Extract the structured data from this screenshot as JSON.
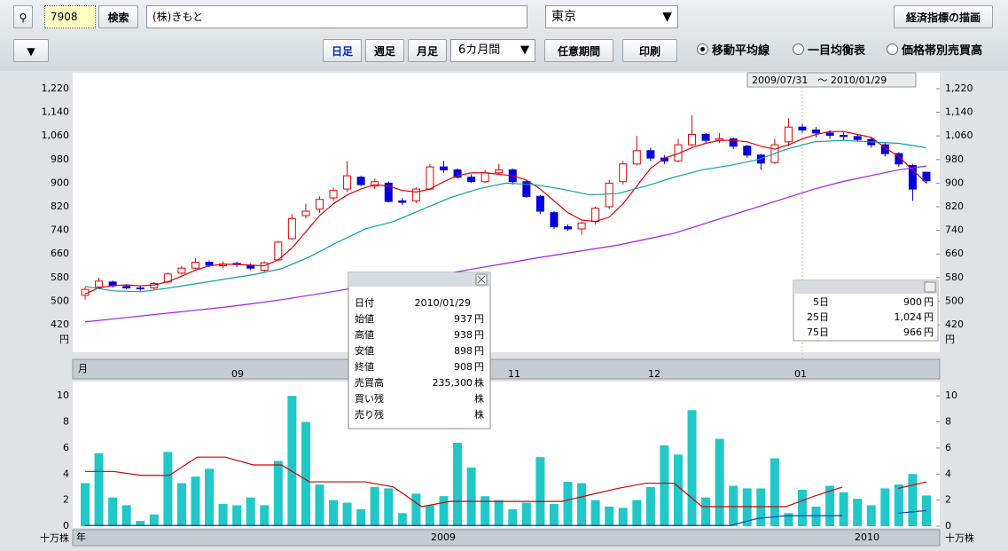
{
  "toolbar": {
    "code": "7908",
    "search": "検索",
    "name": "(株)きもと",
    "market": "東京",
    "draw_indicator": "経済指標の描画",
    "periods": [
      "日足",
      "週足",
      "月足"
    ],
    "range": "6カ月間",
    "custom": "任意期間",
    "print": "印刷",
    "modes": [
      "移動平均線",
      "一目均衡表",
      "価格帯別売買高"
    ]
  },
  "chart_data": [
    {
      "type": "candlestick",
      "date_range": "2009/07/31　～ 2010/01/29",
      "unit": "円",
      "month_label": "月",
      "months": [
        "09",
        "11",
        "12",
        "01"
      ],
      "ylim": [
        333,
        1268
      ],
      "yticks": [
        420,
        500,
        580,
        660,
        740,
        820,
        900,
        980,
        {
          "value": 1060,
          "label": "1,060"
        },
        {
          "value": 1140,
          "label": "1,140"
        },
        {
          "value": 1220,
          "label": "1,220"
        }
      ],
      "grid": false,
      "up_color": "#e00000",
      "down_color": "#0000e0",
      "open": [
        520,
        548,
        565,
        550,
        545,
        545,
        565,
        595,
        612,
        632,
        620,
        628,
        622,
        605,
        640,
        712,
        790,
        812,
        850,
        880,
        920,
        890,
        900,
        840,
        840,
        880,
        955,
        945,
        920,
        905,
        935,
        945,
        905,
        855,
        800,
        752,
        745,
        770,
        820,
        905,
        965,
        1010,
        985,
        975,
        1030,
        1065,
        1045,
        1050,
        1025,
        995,
        970,
        1040,
        1090,
        1080,
        1070,
        1062,
        1058,
        1048,
        1030,
        1000,
        960,
        937
      ],
      "high": [
        548,
        580,
        570,
        558,
        552,
        565,
        598,
        620,
        645,
        638,
        635,
        634,
        628,
        635,
        705,
        795,
        830,
        855,
        885,
        975,
        925,
        915,
        905,
        850,
        885,
        965,
        975,
        950,
        930,
        945,
        965,
        950,
        910,
        860,
        805,
        760,
        770,
        820,
        910,
        975,
        1060,
        1020,
        995,
        1050,
        1130,
        1070,
        1070,
        1055,
        1030,
        1000,
        1050,
        1120,
        1100,
        1090,
        1080,
        1072,
        1065,
        1055,
        1038,
        1005,
        965,
        938
      ],
      "low": [
        505,
        540,
        545,
        540,
        535,
        540,
        560,
        590,
        608,
        615,
        612,
        615,
        605,
        598,
        635,
        708,
        780,
        800,
        840,
        870,
        890,
        880,
        835,
        825,
        832,
        875,
        935,
        915,
        900,
        900,
        930,
        895,
        850,
        795,
        745,
        738,
        725,
        760,
        812,
        895,
        960,
        975,
        965,
        970,
        1025,
        1035,
        1035,
        1015,
        985,
        945,
        965,
        1025,
        1070,
        1055,
        1050,
        1045,
        1040,
        1020,
        990,
        955,
        840,
        898
      ],
      "close": [
        540,
        568,
        552,
        545,
        542,
        560,
        592,
        612,
        632,
        622,
        626,
        624,
        612,
        630,
        700,
        780,
        805,
        845,
        875,
        925,
        895,
        905,
        838,
        835,
        880,
        955,
        945,
        920,
        905,
        935,
        945,
        905,
        855,
        805,
        752,
        745,
        765,
        815,
        900,
        965,
        1010,
        985,
        975,
        1030,
        1065,
        1045,
        1050,
        1025,
        995,
        968,
        1030,
        1090,
        1080,
        1070,
        1062,
        1058,
        1048,
        1030,
        1000,
        965,
        880,
        908
      ],
      "series": [
        {
          "name": "5日",
          "color": "#e00000",
          "current": 900,
          "values": [
            525,
            545,
            553,
            555,
            552,
            555,
            566,
            585,
            605,
            620,
            625,
            625,
            622,
            620,
            640,
            680,
            735,
            790,
            830,
            860,
            880,
            895,
            890,
            875,
            870,
            880,
            905,
            925,
            935,
            935,
            930,
            925,
            910,
            880,
            840,
            800,
            775,
            770,
            785,
            830,
            890,
            950,
            985,
            1000,
            1020,
            1035,
            1045,
            1045,
            1040,
            1025,
            1015,
            1030,
            1050,
            1065,
            1075,
            1075,
            1065,
            1055,
            1020,
            990,
            945,
            900
          ]
        },
        {
          "name": "25日",
          "color": "#10a0a0",
          "current": {
            "value": 1024,
            "label": "1,024"
          },
          "values": [
            550,
            535,
            532,
            545,
            560,
            575,
            590,
            610,
            650,
            700,
            745,
            770,
            810,
            850,
            880,
            900,
            895,
            880,
            860,
            865,
            890,
            920,
            945,
            960,
            980,
            1015,
            1040,
            1045,
            1040,
            1035,
            1020
          ]
        },
        {
          "name": "75日",
          "color": "#a020e0",
          "current": 966,
          "values": [
            430,
            440,
            450,
            460,
            470,
            480,
            492,
            505,
            520,
            535,
            552,
            565,
            580,
            595,
            612,
            628,
            645,
            660,
            675,
            690,
            710,
            730,
            760,
            790,
            820,
            850,
            880,
            905,
            925,
            945,
            958
          ]
        }
      ]
    },
    {
      "type": "bar",
      "unit": "十万株",
      "year_label": "年",
      "years": [
        "2009",
        "2010"
      ],
      "color": "#20c8c8",
      "ylim": [
        0,
        11.1
      ],
      "yticks": [
        0,
        2,
        4,
        6,
        8,
        10
      ],
      "grid": false,
      "values": [
        3.3,
        5.6,
        2.2,
        1.6,
        0.4,
        0.9,
        5.7,
        3.3,
        3.8,
        4.4,
        1.7,
        1.6,
        2.2,
        1.6,
        5.0,
        10.0,
        8.0,
        3.2,
        2.0,
        1.8,
        1.3,
        3.0,
        2.9,
        1.0,
        2.5,
        1.6,
        2.3,
        6.4,
        4.5,
        2.3,
        2.0,
        1.3,
        1.8,
        5.3,
        1.7,
        3.4,
        3.3,
        2.0,
        1.5,
        1.4,
        2.0,
        3.0,
        6.2,
        5.5,
        8.9,
        2.2,
        6.7,
        3.1,
        2.9,
        2.9,
        5.2,
        1.0,
        2.8,
        1.5,
        3.1,
        2.6,
        2.1,
        1.6,
        2.9,
        3.2,
        4.0,
        2.353
      ],
      "lines": [
        {
          "color": "#d00000",
          "values": [
            4.2,
            4.2,
            3.9,
            3.9,
            5.3,
            5.3,
            4.7,
            4.7,
            3.4,
            3.4,
            3.4,
            3.0,
            1.5,
            1.9,
            1.9,
            1.9,
            1.9,
            1.9,
            2.4,
            2.9,
            3.3,
            3.3,
            1.5,
            1.5,
            1.5,
            1.5,
            2.3,
            3.0,
            null,
            2.9,
            3.4
          ]
        },
        {
          "color": "#0040d0",
          "values": [
            0.05,
            0.05,
            0.05,
            0.05,
            0.05,
            0.05,
            0.05,
            0.05,
            0.05,
            0.05,
            0.05,
            0.05,
            0.05,
            0.05,
            0.05,
            0.05,
            0.05,
            0.05,
            0.05,
            0.05,
            0.05,
            0.05,
            0.05,
            0.05,
            0.6,
            0.8,
            0.8,
            0.8,
            null,
            1.0,
            1.2
          ]
        }
      ]
    }
  ],
  "tooltip": {
    "rows": [
      {
        "label": "日付",
        "value": "2010/01/29"
      },
      {
        "label": "始値",
        "value": 937,
        "unit": "円"
      },
      {
        "label": "高値",
        "value": 938,
        "unit": "円"
      },
      {
        "label": "安値",
        "value": 898,
        "unit": "円"
      },
      {
        "label": "終値",
        "value": 908,
        "unit": "円"
      },
      {
        "label": "売買高",
        "value": "235,300",
        "unit": "株"
      },
      {
        "label": "買い残",
        "unit": "株"
      },
      {
        "label": "売り残",
        "unit": "株"
      }
    ]
  }
}
